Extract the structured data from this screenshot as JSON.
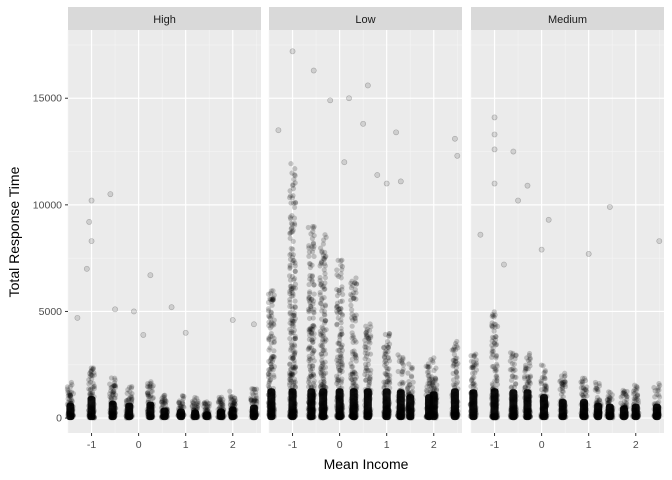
{
  "chart_data": {
    "type": "scatter",
    "xlabel": "Mean Income",
    "ylabel": "Total Response Time",
    "xlim": [
      -1.5,
      2.6
    ],
    "ylim": [
      -700,
      18200
    ],
    "x_ticks": [
      -1,
      0,
      1,
      2
    ],
    "x_tick_labels": [
      "-1",
      "0",
      "1",
      "2"
    ],
    "y_ticks": [
      0,
      5000,
      10000,
      15000
    ],
    "y_tick_labels": [
      "0",
      "5000",
      "10000",
      "15000"
    ],
    "grid": true,
    "point_color": "#000000",
    "point_opacity": 0.12,
    "panel_background": "#ebebeb",
    "strip_background": "#d9d9d9",
    "facets": [
      {
        "name": "High",
        "x_columns": [
          -1.45,
          -1.0,
          -0.55,
          -0.2,
          0.25,
          0.55,
          0.9,
          1.2,
          1.45,
          1.75,
          2.0,
          2.45
        ],
        "typical_max": [
          1600,
          2300,
          1800,
          1600,
          1700,
          1100,
          1000,
          900,
          700,
          1000,
          1200,
          1400
        ],
        "outliers": [
          [
            -1.0,
            10200
          ],
          [
            -1.05,
            9200
          ],
          [
            -0.6,
            10500
          ],
          [
            -1.0,
            8300
          ],
          [
            -1.1,
            7000
          ],
          [
            -0.5,
            5100
          ],
          [
            -0.1,
            5000
          ],
          [
            0.25,
            6700
          ],
          [
            -1.3,
            4700
          ],
          [
            0.7,
            5200
          ],
          [
            1.0,
            4000
          ],
          [
            2.0,
            4600
          ],
          [
            2.45,
            4400
          ],
          [
            0.1,
            3900
          ]
        ]
      },
      {
        "name": "Low",
        "x_columns": [
          -1.45,
          -1.0,
          -0.6,
          -0.35,
          0.0,
          0.3,
          0.6,
          1.0,
          1.3,
          1.5,
          1.9,
          2.0,
          2.45
        ],
        "typical_max": [
          6000,
          12000,
          9000,
          8500,
          7500,
          6500,
          4500,
          4000,
          3000,
          2500,
          2500,
          2800,
          3500
        ],
        "outliers": [
          [
            -1.0,
            17200
          ],
          [
            -0.55,
            16300
          ],
          [
            0.2,
            15000
          ],
          [
            -0.2,
            14900
          ],
          [
            0.6,
            15600
          ],
          [
            0.5,
            13800
          ],
          [
            1.2,
            13400
          ],
          [
            2.45,
            13100
          ],
          [
            2.5,
            12300
          ],
          [
            -1.3,
            13500
          ],
          [
            1.0,
            11000
          ],
          [
            0.8,
            11400
          ],
          [
            1.3,
            11100
          ],
          [
            0.1,
            12000
          ]
        ]
      },
      {
        "name": "Medium",
        "x_columns": [
          -1.45,
          -1.0,
          -0.6,
          -0.3,
          0.05,
          0.45,
          0.9,
          1.2,
          1.45,
          1.75,
          2.0,
          2.45
        ],
        "typical_max": [
          3000,
          5000,
          3000,
          3000,
          2500,
          2000,
          2000,
          1600,
          1500,
          1300,
          1500,
          1500
        ],
        "outliers": [
          [
            -1.0,
            14100
          ],
          [
            -1.0,
            13300
          ],
          [
            -1.0,
            12600
          ],
          [
            -0.6,
            12500
          ],
          [
            -1.0,
            11000
          ],
          [
            -0.3,
            10900
          ],
          [
            1.45,
            9900
          ],
          [
            -0.5,
            10200
          ],
          [
            0.15,
            9300
          ],
          [
            -1.3,
            8600
          ],
          [
            2.5,
            8300
          ],
          [
            1.0,
            7700
          ],
          [
            0.0,
            7900
          ],
          [
            -0.8,
            7200
          ]
        ]
      }
    ]
  }
}
